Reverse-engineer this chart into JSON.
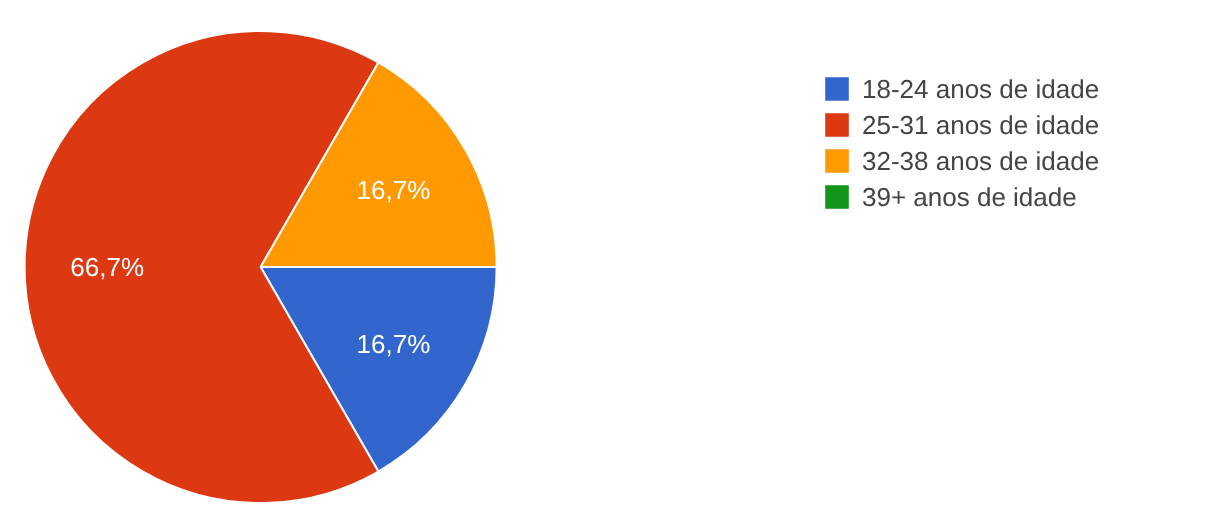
{
  "chart_data": {
    "type": "pie",
    "categories": [
      "18-24 anos de idade",
      "25-31 anos de idade",
      "32-38 anos de idade",
      "39+ anos de idade"
    ],
    "values": [
      16.7,
      66.7,
      16.7,
      0
    ],
    "colors": [
      "#3366cc",
      "#dc3912",
      "#ff9900",
      "#109618"
    ],
    "value_labels": [
      "16,7%",
      "66,7%",
      "16,7%",
      null
    ],
    "legend": "right"
  }
}
